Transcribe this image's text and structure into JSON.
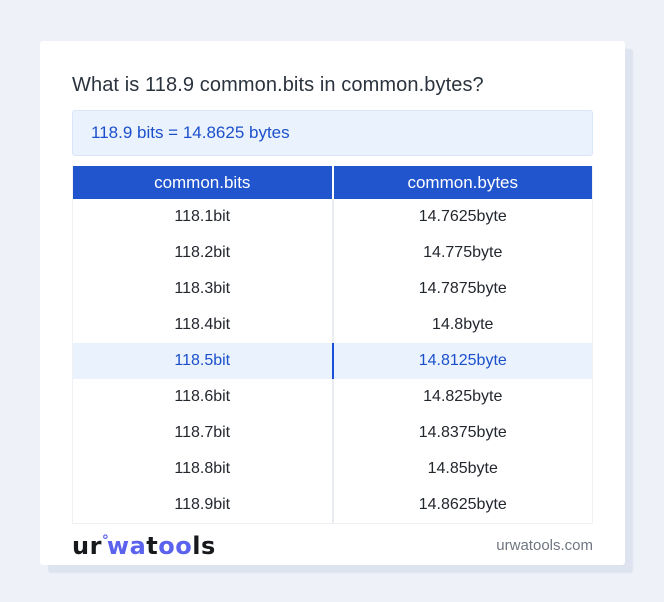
{
  "colors": {
    "accent": "#2155cd",
    "header-bg": "#2155cd",
    "header-text": "#ffffff",
    "result-bg": "#eaf2fd",
    "result-border": "#d9e6f8",
    "result-text": "#1c50cb",
    "highlight-bg": "#e9f2fd",
    "highlight-text": "#1c50cb",
    "highlight-divider": "#1d4ed8",
    "body-text": "#23272e",
    "title-text": "#2b333e",
    "divider": "#e9edf1",
    "footer-link": "#6f7680",
    "logo-dark": "#17191d",
    "logo-blue": "#5b63ee",
    "page-bg": "#eef1f7",
    "card-bg": "#ffffff"
  },
  "title": "What is 118.9 common.bits in common.bytes?",
  "result": {
    "text": "118.9 bits = 14.8625 bytes"
  },
  "table": {
    "columns": [
      "common.bits",
      "common.bytes"
    ],
    "rows": [
      {
        "bits": "118.1bit",
        "bytes": "14.7625byte",
        "highlighted": false
      },
      {
        "bits": "118.2bit",
        "bytes": "14.775byte",
        "highlighted": false
      },
      {
        "bits": "118.3bit",
        "bytes": "14.7875byte",
        "highlighted": false
      },
      {
        "bits": "118.4bit",
        "bytes": "14.8byte",
        "highlighted": false
      },
      {
        "bits": "118.5bit",
        "bytes": "14.8125byte",
        "highlighted": true
      },
      {
        "bits": "118.6bit",
        "bytes": "14.825byte",
        "highlighted": false
      },
      {
        "bits": "118.7bit",
        "bytes": "14.8375byte",
        "highlighted": false
      },
      {
        "bits": "118.8bit",
        "bytes": "14.85byte",
        "highlighted": false
      },
      {
        "bits": "118.9bit",
        "bytes": "14.8625byte",
        "highlighted": false
      }
    ]
  },
  "footer": {
    "logo": {
      "ur": "ur",
      "ring": "°",
      "wa": "wa",
      "t": "t",
      "oo": "oo",
      "ls": "ls"
    },
    "site": "urwatools.com"
  }
}
